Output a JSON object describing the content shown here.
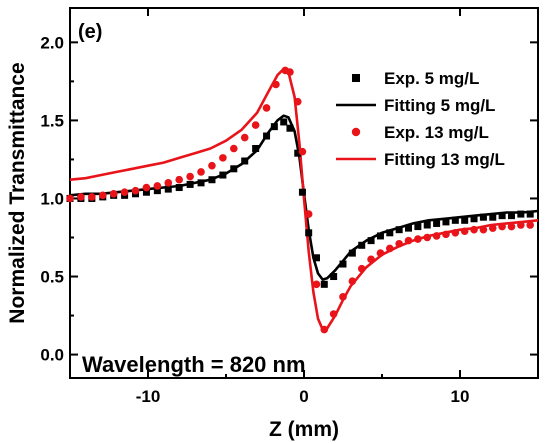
{
  "chart_data": {
    "type": "scatter",
    "panel_label": "(e)",
    "annotation": "Wavelength = 820 nm",
    "xlabel": "Z (mm)",
    "ylabel": "Normalized Transmittance",
    "xlim": [
      -15,
      15
    ],
    "ylim": [
      -0.15,
      2.22
    ],
    "x_ticks": [
      -10,
      0,
      10
    ],
    "x_tick_labels": [
      "-10",
      "0",
      "10"
    ],
    "y_ticks": [
      0.0,
      0.5,
      1.0,
      1.5,
      2.0
    ],
    "y_tick_labels": [
      "0.0",
      "0.5",
      "1.0",
      "1.5",
      "2.0"
    ],
    "grid": false,
    "legend_position": "top-right",
    "colors": {
      "black": "#000000",
      "red": "#e8141a"
    },
    "series": [
      {
        "name": "Exp.  5 mg/L",
        "kind": "markers",
        "marker": "square",
        "color": "#000000",
        "points": [
          [
            -15,
            1.0
          ],
          [
            -14.3,
            1.0
          ],
          [
            -13.6,
            1.0
          ],
          [
            -12.9,
            1.01
          ],
          [
            -12.2,
            1.02
          ],
          [
            -11.5,
            1.02
          ],
          [
            -10.8,
            1.03
          ],
          [
            -10.1,
            1.04
          ],
          [
            -9.4,
            1.05
          ],
          [
            -8.7,
            1.06
          ],
          [
            -8.0,
            1.07
          ],
          [
            -7.3,
            1.09
          ],
          [
            -6.6,
            1.1
          ],
          [
            -5.9,
            1.12
          ],
          [
            -5.2,
            1.15
          ],
          [
            -4.5,
            1.19
          ],
          [
            -3.8,
            1.24
          ],
          [
            -3.1,
            1.32
          ],
          [
            -2.4,
            1.4
          ],
          [
            -1.9,
            1.46
          ],
          [
            -1.3,
            1.49
          ],
          [
            -0.9,
            1.45
          ],
          [
            -0.4,
            1.29
          ],
          [
            -0.1,
            1.04
          ],
          [
            0.3,
            0.78
          ],
          [
            0.8,
            0.62
          ],
          [
            1.3,
            0.45
          ],
          [
            1.9,
            0.5
          ],
          [
            2.5,
            0.58
          ],
          [
            3.1,
            0.65
          ],
          [
            3.7,
            0.7
          ],
          [
            4.3,
            0.73
          ],
          [
            4.9,
            0.76
          ],
          [
            5.5,
            0.78
          ],
          [
            6.1,
            0.8
          ],
          [
            6.7,
            0.81
          ],
          [
            7.3,
            0.82
          ],
          [
            7.9,
            0.83
          ],
          [
            8.5,
            0.84
          ],
          [
            9.1,
            0.85
          ],
          [
            9.7,
            0.86
          ],
          [
            10.3,
            0.86
          ],
          [
            10.9,
            0.87
          ],
          [
            11.5,
            0.88
          ],
          [
            12.1,
            0.88
          ],
          [
            12.7,
            0.89
          ],
          [
            13.3,
            0.89
          ],
          [
            13.9,
            0.9
          ],
          [
            14.5,
            0.9
          ]
        ]
      },
      {
        "name": "Fitting 5 mg/L",
        "kind": "line",
        "color": "#000000",
        "points": [
          [
            -15,
            1.02
          ],
          [
            -14,
            1.03
          ],
          [
            -13,
            1.03
          ],
          [
            -12,
            1.04
          ],
          [
            -11,
            1.05
          ],
          [
            -10,
            1.06
          ],
          [
            -9,
            1.07
          ],
          [
            -8,
            1.08
          ],
          [
            -7,
            1.1
          ],
          [
            -6,
            1.12
          ],
          [
            -5,
            1.16
          ],
          [
            -4,
            1.22
          ],
          [
            -3,
            1.31
          ],
          [
            -2.3,
            1.42
          ],
          [
            -1.7,
            1.5
          ],
          [
            -1.3,
            1.53
          ],
          [
            -1.0,
            1.52
          ],
          [
            -0.6,
            1.43
          ],
          [
            -0.3,
            1.27
          ],
          [
            0,
            1.03
          ],
          [
            0.3,
            0.8
          ],
          [
            0.6,
            0.62
          ],
          [
            0.9,
            0.52
          ],
          [
            1.2,
            0.48
          ],
          [
            1.5,
            0.49
          ],
          [
            2.0,
            0.54
          ],
          [
            2.5,
            0.6
          ],
          [
            3.0,
            0.66
          ],
          [
            4.0,
            0.73
          ],
          [
            5.0,
            0.78
          ],
          [
            6.0,
            0.81
          ],
          [
            7.0,
            0.84
          ],
          [
            8.0,
            0.86
          ],
          [
            9.0,
            0.87
          ],
          [
            10.0,
            0.88
          ],
          [
            11.0,
            0.89
          ],
          [
            12.0,
            0.9
          ],
          [
            13.0,
            0.91
          ],
          [
            14.0,
            0.91
          ],
          [
            15,
            0.92
          ]
        ]
      },
      {
        "name": "Exp. 13 mg/L",
        "kind": "markers",
        "marker": "circle",
        "color": "#e8141a",
        "points": [
          [
            -15,
            1.0
          ],
          [
            -14.3,
            1.01
          ],
          [
            -13.6,
            1.01
          ],
          [
            -12.9,
            1.02
          ],
          [
            -12.2,
            1.03
          ],
          [
            -11.5,
            1.04
          ],
          [
            -10.8,
            1.05
          ],
          [
            -10.1,
            1.07
          ],
          [
            -9.4,
            1.08
          ],
          [
            -8.7,
            1.1
          ],
          [
            -8.0,
            1.12
          ],
          [
            -7.3,
            1.14
          ],
          [
            -6.6,
            1.17
          ],
          [
            -5.9,
            1.21
          ],
          [
            -5.2,
            1.26
          ],
          [
            -4.5,
            1.32
          ],
          [
            -3.8,
            1.39
          ],
          [
            -3.1,
            1.47
          ],
          [
            -2.4,
            1.58
          ],
          [
            -1.8,
            1.73
          ],
          [
            -1.2,
            1.82
          ],
          [
            -0.9,
            1.81
          ],
          [
            -0.4,
            1.62
          ],
          [
            -0.1,
            1.3
          ],
          [
            0.3,
            0.9
          ],
          [
            0.8,
            0.45
          ],
          [
            1.3,
            0.16
          ],
          [
            1.9,
            0.26
          ],
          [
            2.5,
            0.37
          ],
          [
            3.1,
            0.47
          ],
          [
            3.7,
            0.55
          ],
          [
            4.3,
            0.61
          ],
          [
            4.9,
            0.65
          ],
          [
            5.5,
            0.68
          ],
          [
            6.1,
            0.71
          ],
          [
            6.7,
            0.73
          ],
          [
            7.3,
            0.74
          ],
          [
            7.9,
            0.75
          ],
          [
            8.5,
            0.76
          ],
          [
            9.1,
            0.77
          ],
          [
            9.7,
            0.78
          ],
          [
            10.3,
            0.79
          ],
          [
            10.9,
            0.8
          ],
          [
            11.5,
            0.8
          ],
          [
            12.1,
            0.81
          ],
          [
            12.7,
            0.82
          ],
          [
            13.3,
            0.82
          ],
          [
            13.9,
            0.83
          ],
          [
            14.5,
            0.83
          ]
        ]
      },
      {
        "name": "Fitting 13 mg/L",
        "kind": "line",
        "color": "#e8141a",
        "points": [
          [
            -15,
            1.12
          ],
          [
            -14,
            1.13
          ],
          [
            -13,
            1.15
          ],
          [
            -12,
            1.17
          ],
          [
            -11,
            1.19
          ],
          [
            -10,
            1.21
          ],
          [
            -9,
            1.23
          ],
          [
            -8,
            1.26
          ],
          [
            -7,
            1.29
          ],
          [
            -6,
            1.32
          ],
          [
            -5,
            1.37
          ],
          [
            -4,
            1.44
          ],
          [
            -3,
            1.55
          ],
          [
            -2.3,
            1.68
          ],
          [
            -1.7,
            1.79
          ],
          [
            -1.3,
            1.83
          ],
          [
            -1.0,
            1.81
          ],
          [
            -0.6,
            1.65
          ],
          [
            -0.3,
            1.36
          ],
          [
            0,
            1.0
          ],
          [
            0.3,
            0.66
          ],
          [
            0.6,
            0.4
          ],
          [
            0.9,
            0.23
          ],
          [
            1.2,
            0.16
          ],
          [
            1.5,
            0.17
          ],
          [
            2.0,
            0.25
          ],
          [
            2.5,
            0.35
          ],
          [
            3.0,
            0.44
          ],
          [
            4.0,
            0.56
          ],
          [
            5.0,
            0.64
          ],
          [
            6.0,
            0.69
          ],
          [
            7.0,
            0.73
          ],
          [
            8.0,
            0.76
          ],
          [
            9.0,
            0.78
          ],
          [
            10.0,
            0.8
          ],
          [
            11.0,
            0.81
          ],
          [
            12.0,
            0.83
          ],
          [
            13.0,
            0.84
          ],
          [
            14.0,
            0.85
          ],
          [
            15,
            0.86
          ]
        ]
      }
    ]
  }
}
